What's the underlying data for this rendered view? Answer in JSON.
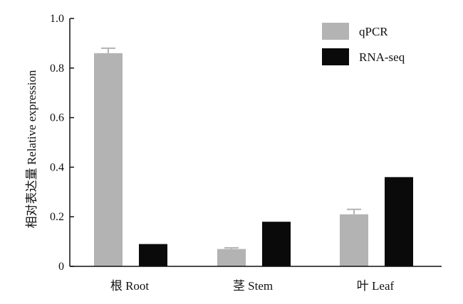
{
  "chart_data": {
    "type": "bar",
    "categories": [
      "根 Root",
      "茎 Stem",
      "叶 Leaf"
    ],
    "series": [
      {
        "name": "qPCR",
        "values": [
          0.86,
          0.07,
          0.21
        ],
        "errors": [
          0.02,
          0.005,
          0.02
        ],
        "color": "#b3b3b3"
      },
      {
        "name": "RNA-seq",
        "values": [
          0.09,
          0.18,
          0.36
        ],
        "color": "#0a0a0a"
      }
    ],
    "ylabel": "相对表达量 Relative expression",
    "yticks": [
      "0",
      "0.2",
      "0.4",
      "0.6",
      "0.8",
      "1.0"
    ],
    "ylim": [
      0,
      1.0
    ],
    "legend_position": "top-right",
    "grid": false
  }
}
